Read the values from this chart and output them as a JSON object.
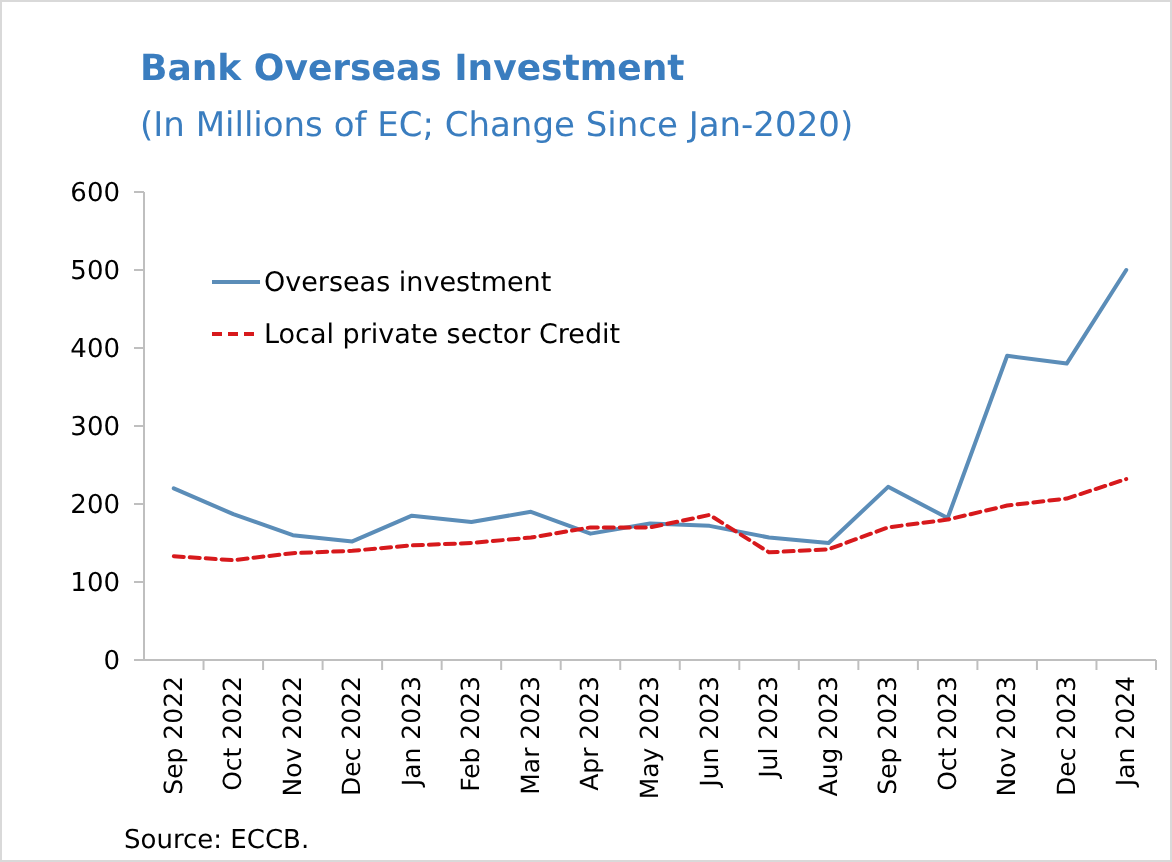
{
  "chart_data": {
    "type": "line",
    "title": "Bank Overseas Investment",
    "subtitle": "(In Millions of EC; Change Since Jan-2020)",
    "annotations": [
      "Source: ECCB."
    ],
    "categories": [
      "Sep 2022",
      "Oct 2022",
      "Nov 2022",
      "Dec 2022",
      "Jan 2023",
      "Feb 2023",
      "Mar 2023",
      "Apr 2023",
      "May 2023",
      "Jun 2023",
      "Jul 2023",
      "Aug 2023",
      "Sep 2023",
      "Oct 2023",
      "Nov 2023",
      "Dec 2023",
      "Jan 2024"
    ],
    "series": [
      {
        "name": "Overseas investment",
        "color": "#5b8db8",
        "line_style": "solid",
        "values": [
          220,
          187,
          160,
          152,
          185,
          177,
          190,
          162,
          175,
          172,
          157,
          150,
          222,
          182,
          390,
          380,
          500
        ]
      },
      {
        "name": "Local private sector Credit",
        "color": "#d7191c",
        "line_style": "dashed",
        "values": [
          133,
          128,
          137,
          140,
          147,
          150,
          157,
          170,
          170,
          186,
          138,
          142,
          170,
          180,
          198,
          207,
          232
        ]
      }
    ],
    "ylim": [
      0,
      600
    ],
    "yticks": [
      0,
      100,
      200,
      300,
      400,
      500,
      600
    ],
    "grid": false,
    "legend": "top left",
    "marker": "none"
  }
}
